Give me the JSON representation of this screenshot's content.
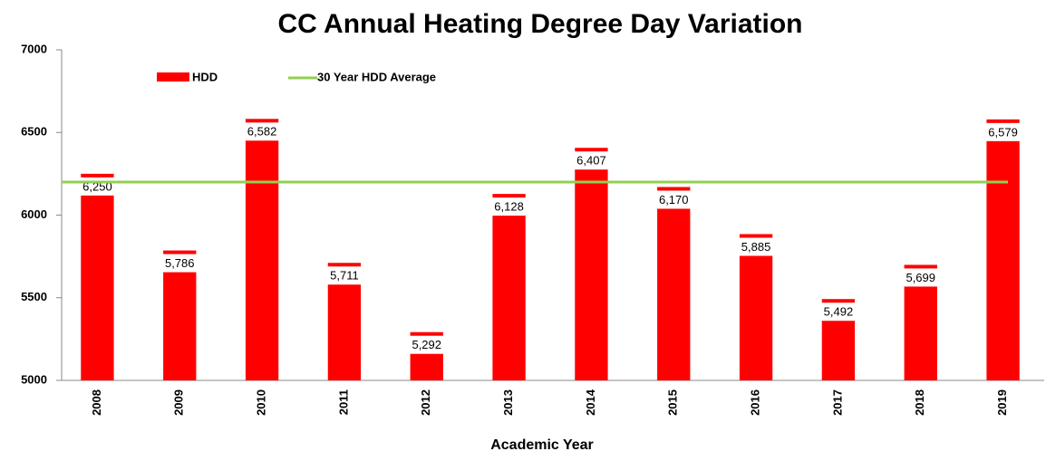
{
  "chart_data": {
    "type": "bar",
    "title": "CC Annual Heating Degree Day Variation",
    "x_label": "Academic Year",
    "categories": [
      "2008",
      "2009",
      "2010",
      "2011",
      "2012",
      "2013",
      "2014",
      "2015",
      "2016",
      "2017",
      "2018",
      "2019"
    ],
    "series": [
      {
        "name": "HDD",
        "color": "#ff0000",
        "values": [
          6250,
          5786,
          6582,
          5711,
          5292,
          6128,
          6407,
          6170,
          5885,
          5492,
          5699,
          6579
        ],
        "value_labels": [
          "6,250",
          "5,786",
          "6,582",
          "5,711",
          "5,292",
          "6,128",
          "6,407",
          "6,170",
          "5,885",
          "5,492",
          "5,699",
          "6,579"
        ]
      }
    ],
    "average": {
      "name": "30 Year HDD Average",
      "value": 6200,
      "color": "#92d050"
    },
    "ylim": [
      5000,
      7000
    ],
    "yticks": [
      5000,
      5500,
      6000,
      6500,
      7000
    ],
    "legend": "top-left",
    "grid": false
  }
}
